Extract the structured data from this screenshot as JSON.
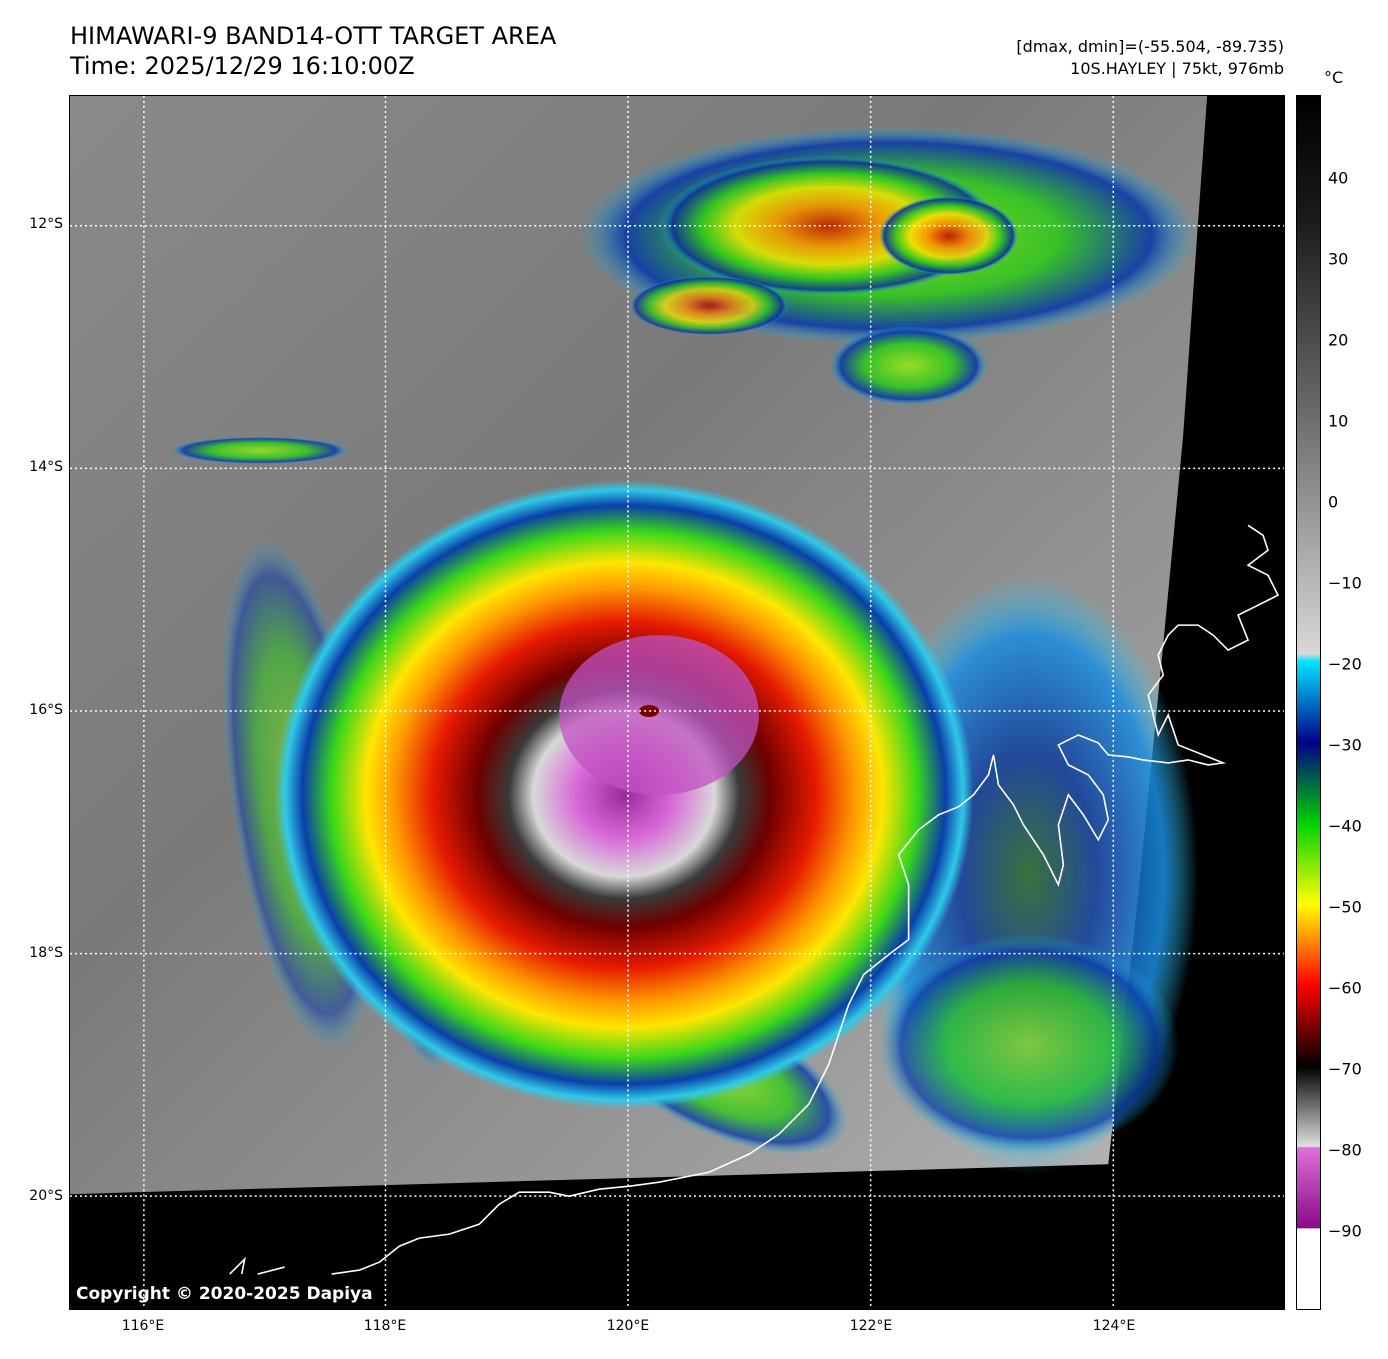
{
  "title": {
    "line1": "HIMAWARI-9 BAND14-OTT TARGET AREA",
    "line2": "Time: 2025/12/29 16:10:00Z"
  },
  "info": {
    "range": "[dmax, dmin]=(-55.504, -89.735)",
    "storm": "10S.HAYLEY | 75kt, 976mb"
  },
  "axes": {
    "lat_labels": [
      "12°S",
      "14°S",
      "16°S",
      "18°S",
      "20°S"
    ],
    "lon_labels": [
      "116°E",
      "118°E",
      "120°E",
      "122°E",
      "124°E"
    ]
  },
  "copyright": "Copyright © 2020-2025 Dapiya",
  "colorbar": {
    "unit": "°C",
    "ticks": [
      "40",
      "30",
      "20",
      "10",
      "0",
      "−10",
      "−20",
      "−30",
      "−40",
      "−50",
      "−60",
      "−70",
      "−80",
      "−90"
    ],
    "range": [
      -100,
      50
    ]
  },
  "colors": {
    "grid": "#ffffff",
    "coastline": "#ffffff",
    "no_data": "#000000"
  }
}
